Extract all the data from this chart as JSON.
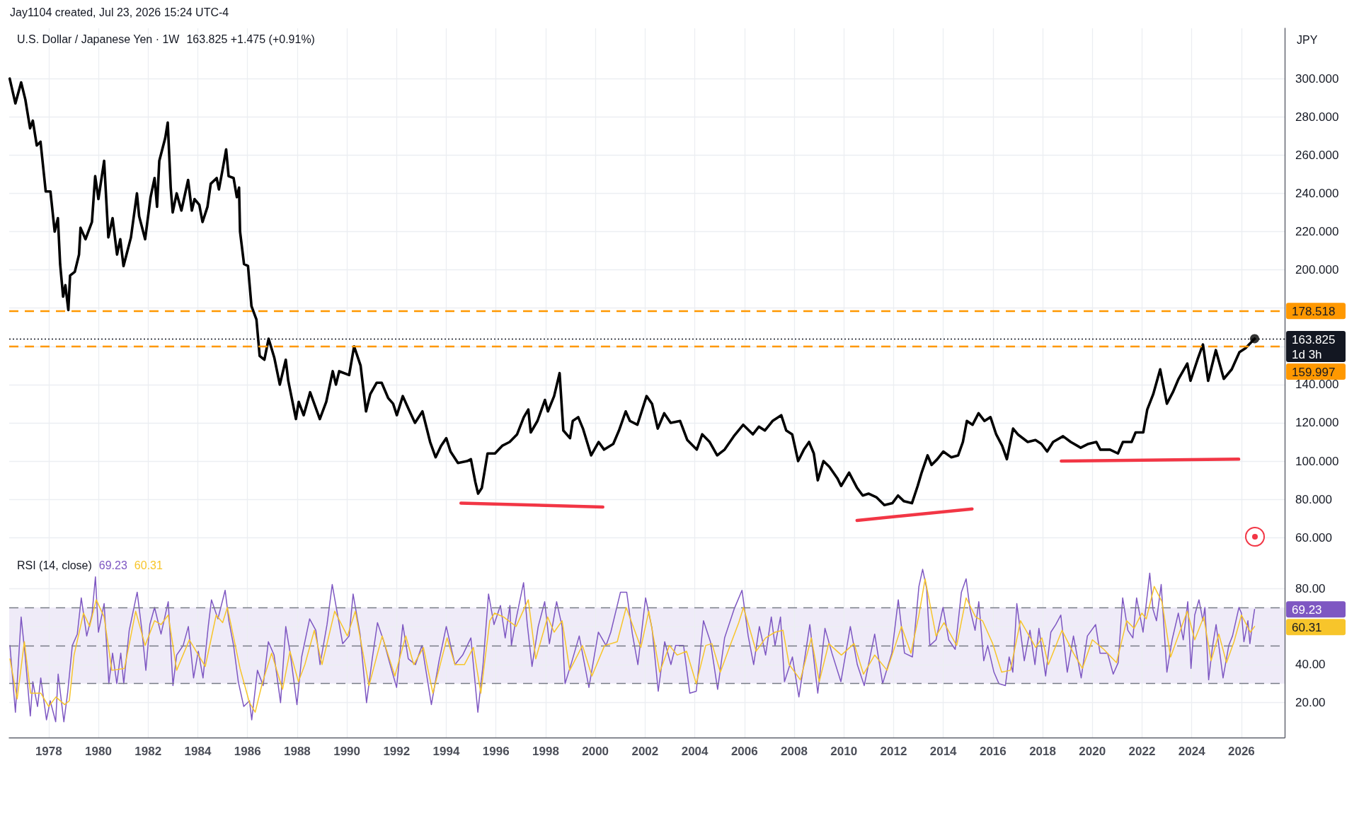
{
  "chart_data": [
    {
      "type": "line",
      "title": "U.S. Dollar / Japanese Yen · 1W",
      "subtitle": "163.825 +1.475 (+0.91%)",
      "ylabel": "JPY",
      "annotations": [
        "Jay1104 created, Jul 23, 2026 15:24 UTC-4"
      ],
      "xlim": [
        1976.41,
        2027.74
      ],
      "xticks": [
        1978,
        1980,
        1982,
        1984,
        1986,
        1988,
        1990,
        1992,
        1994,
        1996,
        1998,
        2000,
        2002,
        2004,
        2006,
        2008,
        2010,
        2012,
        2014,
        2016,
        2018,
        2020,
        2022,
        2024,
        2026
      ],
      "ylim": [
        52.7,
        326.3
      ],
      "yticks": [
        {
          "value": 60,
          "label": "60.000"
        },
        {
          "value": 80,
          "label": "80.000"
        },
        {
          "value": 100,
          "label": "100.000"
        },
        {
          "value": 120,
          "label": "120.000"
        },
        {
          "value": 140,
          "label": "140.000"
        },
        {
          "value": 160,
          "label": null
        },
        {
          "value": 180,
          "label": null
        },
        {
          "value": 200,
          "label": "200.000"
        },
        {
          "value": 220,
          "label": "220.000"
        },
        {
          "value": 240,
          "label": "240.000"
        },
        {
          "value": 260,
          "label": "260.000"
        },
        {
          "value": 280,
          "label": "280.000"
        },
        {
          "value": 300,
          "label": "300.000"
        }
      ],
      "grid": true,
      "marker": "none",
      "tick_labels": "y",
      "ref_lines": [
        {
          "axis": "y",
          "value": 178.518,
          "label": "178.518",
          "color": "#ff9800",
          "line_style": "dashed"
        },
        {
          "axis": "y",
          "value": 163.825,
          "label": "163.825\n1d 3h",
          "color": "#131722",
          "line_style": "dotted"
        },
        {
          "axis": "y",
          "value": 159.997,
          "label": "159.997",
          "color": "#ff9800",
          "line_style": "dashed"
        }
      ],
      "series": [
        {
          "color": "#000000",
          "x": [
            1976.43,
            1976.66,
            1976.89,
            1977.06,
            1977.25,
            1977.36,
            1977.52,
            1977.67,
            1977.88,
            1978.07,
            1978.24,
            1978.37,
            1978.46,
            1978.58,
            1978.67,
            1978.79,
            1978.86,
            1979.05,
            1979.22,
            1979.28,
            1979.48,
            1979.74,
            1979.87,
            1980,
            1980.23,
            1980.4,
            1980.57,
            1980.75,
            1980.88,
            1981.01,
            1981.31,
            1981.55,
            1981.64,
            1981.88,
            1982.1,
            1982.26,
            1982.36,
            1982.45,
            1982.69,
            1982.79,
            1982.91,
            1982.99,
            1983.15,
            1983.34,
            1983.61,
            1983.76,
            1983.87,
            1984.06,
            1984.19,
            1984.39,
            1984.52,
            1984.76,
            1984.85,
            1985.02,
            1985.14,
            1985.24,
            1985.44,
            1985.57,
            1985.66,
            1985.7,
            1985.86,
            1986.02,
            1986.16,
            1986.36,
            1986.49,
            1986.68,
            1986.85,
            1987.08,
            1987.3,
            1987.54,
            1987.64,
            1987.95,
            1988.06,
            1988.26,
            1988.52,
            1988.91,
            1989.17,
            1989.43,
            1989.56,
            1989.69,
            1990.09,
            1990.29,
            1990.55,
            1990.77,
            1990.94,
            1991.2,
            1991.4,
            1991.66,
            1991.86,
            1992.01,
            1992.25,
            1992.49,
            1992.74,
            1993.04,
            1993.35,
            1993.57,
            1993.79,
            1994,
            1994.17,
            1994.47,
            1994.84,
            1994.99,
            1995.17,
            1995.28,
            1995.43,
            1995.66,
            1995.96,
            1996.25,
            1996.55,
            1996.85,
            1997.12,
            1997.3,
            1997.4,
            1997.67,
            1997.97,
            1998.09,
            1998.34,
            1998.56,
            1998.71,
            1998.98,
            1999.09,
            1999.31,
            1999.5,
            1999.83,
            2000.13,
            2000.35,
            2000.72,
            2000.95,
            2001.22,
            2001.39,
            2001.69,
            2002.06,
            2002.28,
            2002.51,
            2002.77,
            2003.03,
            2003.41,
            2003.7,
            2004.08,
            2004.3,
            2004.6,
            2004.9,
            2005.2,
            2005.57,
            2005.95,
            2006.34,
            2006.58,
            2006.82,
            2007.13,
            2007.48,
            2007.68,
            2007.92,
            2008.16,
            2008.39,
            2008.6,
            2008.79,
            2008.95,
            2009.18,
            2009.42,
            2009.74,
            2009.89,
            2010.21,
            2010.53,
            2010.76,
            2011,
            2011.32,
            2011.63,
            2011.95,
            2012.18,
            2012.42,
            2012.74,
            2012.97,
            2013.13,
            2013.37,
            2013.53,
            2013.76,
            2014,
            2014.32,
            2014.6,
            2014.79,
            2014.95,
            2015.18,
            2015.42,
            2015.66,
            2015.9,
            2016.13,
            2016.37,
            2016.56,
            2016.81,
            2017,
            2017.4,
            2017.71,
            2017.95,
            2018.18,
            2018.42,
            2018.82,
            2019.13,
            2019.53,
            2019.84,
            2020.16,
            2020.32,
            2020.71,
            2021.03,
            2021.23,
            2021.58,
            2021.74,
            2022.05,
            2022.21,
            2022.45,
            2022.73,
            2023,
            2023.24,
            2023.47,
            2023.82,
            2023.95,
            2024.23,
            2024.45,
            2024.66,
            2024.97,
            2025.29,
            2025.61,
            2025.92,
            2026.16,
            2026.53
          ],
          "values": [
            300,
            287,
            298,
            289,
            274,
            278,
            265,
            267,
            241,
            241,
            220,
            227,
            203,
            186,
            192,
            179,
            197,
            199,
            208,
            222,
            216,
            225,
            249,
            237,
            257,
            217,
            227,
            208,
            216,
            202,
            217,
            240,
            228,
            216,
            238,
            248,
            233,
            257,
            269,
            277,
            243,
            230,
            240,
            231,
            247,
            231,
            237,
            234,
            225,
            233,
            245,
            248,
            242,
            254,
            263,
            249,
            248,
            238,
            243,
            220,
            203,
            202,
            181,
            174,
            155,
            153,
            164,
            154,
            140,
            153,
            142,
            122,
            131,
            124,
            136,
            122,
            131,
            147,
            140,
            147,
            145,
            160,
            150,
            126,
            135,
            141,
            141,
            133,
            130,
            124,
            134,
            127,
            120,
            126,
            110,
            102,
            108,
            112,
            105,
            99,
            100,
            101,
            89,
            83,
            86,
            104,
            104,
            108,
            110,
            114,
            123,
            127,
            115,
            121,
            132,
            126,
            134,
            146,
            116,
            112,
            121,
            123,
            117,
            103,
            110,
            106,
            109,
            116,
            126,
            121,
            119,
            134,
            130,
            117,
            125,
            120,
            121,
            111,
            106,
            114,
            110,
            103,
            106,
            113,
            119,
            114,
            118,
            116,
            121,
            124,
            116,
            114,
            100,
            106,
            110,
            104,
            90,
            100,
            97,
            91,
            87,
            94,
            86,
            82,
            83,
            81,
            77,
            78,
            82,
            79,
            78,
            87,
            94,
            103,
            98,
            101,
            105,
            102,
            103,
            110,
            121,
            119,
            125,
            121,
            123,
            114,
            108,
            101,
            117,
            114,
            110,
            111,
            109,
            105,
            110,
            113,
            110,
            107,
            109,
            110,
            106,
            106,
            104,
            110,
            110,
            115,
            115,
            127,
            135,
            148,
            130,
            136,
            143,
            151,
            142,
            153,
            161,
            142,
            158,
            143,
            148,
            157,
            159,
            164
          ]
        },
        {
          "color": "#f23645",
          "x": [
            1994.59,
            2000.3
          ],
          "values": [
            78,
            76
          ]
        },
        {
          "color": "#f23645",
          "x": [
            2010.53,
            2015.16
          ],
          "values": [
            69,
            75
          ]
        },
        {
          "color": "#f23645",
          "x": [
            2018.75,
            2025.89
          ],
          "values": [
            100,
            101
          ]
        },
        {
          "type": "scatter",
          "marker": "circle",
          "color": "#000000",
          "x": [
            2026.53
          ],
          "values": [
            164
          ]
        }
      ]
    },
    {
      "type": "line",
      "title": "RSI (14, close)",
      "annotations": [
        "69.23",
        "60.31"
      ],
      "xlim": [
        1976.41,
        2027.74
      ],
      "xticks": [
        1978,
        1980,
        1982,
        1984,
        1986,
        1988,
        1990,
        1992,
        1994,
        1996,
        1998,
        2000,
        2002,
        2004,
        2006,
        2008,
        2010,
        2012,
        2014,
        2016,
        2018,
        2020,
        2022,
        2024,
        2026
      ],
      "ylim": [
        1.7,
        99.3
      ],
      "yticks": [
        {
          "value": 20,
          "label": "20.00"
        },
        {
          "value": 40,
          "label": "40.00"
        },
        {
          "value": 60,
          "label": null
        },
        {
          "value": 80,
          "label": "80.00"
        }
      ],
      "grid": true,
      "marker": "none",
      "ref_lines": [
        {
          "axis": "y",
          "value": 70,
          "color": "#787b86",
          "line_style": "dashed"
        },
        {
          "axis": "y",
          "value": 50,
          "color": "#787b86",
          "line_style": "dashed"
        },
        {
          "axis": "y",
          "value": 30,
          "color": "#787b86",
          "line_style": "dashed"
        }
      ],
      "bands": [
        {
          "axis": "y",
          "from": 30,
          "to": 70,
          "color": "#efebf8"
        }
      ],
      "series": [
        {
          "color": "#7e57c2",
          "x": [
            1976.44,
            1976.66,
            1976.89,
            1977.05,
            1977.26,
            1977.36,
            1977.55,
            1977.68,
            1977.91,
            1978.06,
            1978.28,
            1978.38,
            1978.61,
            1978.76,
            1978.95,
            1979.15,
            1979.31,
            1979.53,
            1979.74,
            1979.88,
            1980,
            1980.23,
            1980.42,
            1980.57,
            1980.74,
            1980.9,
            1981.02,
            1981.24,
            1981.56,
            1981.75,
            1981.91,
            1982.07,
            1982.26,
            1982.52,
            1982.81,
            1983,
            1983.15,
            1983.41,
            1983.62,
            1983.83,
            1984.02,
            1984.21,
            1984.42,
            1984.55,
            1984.81,
            1985.1,
            1985.25,
            1985.44,
            1985.63,
            1985.85,
            1986.08,
            1986.17,
            1986.4,
            1986.63,
            1986.84,
            1987.07,
            1987.33,
            1987.54,
            1987.73,
            1987.99,
            1988.18,
            1988.5,
            1988.75,
            1988.92,
            1989.2,
            1989.41,
            1989.64,
            1989.83,
            1990.09,
            1990.25,
            1990.53,
            1990.79,
            1991.02,
            1991.23,
            1991.49,
            1991.74,
            1992,
            1992.25,
            1992.47,
            1992.76,
            1993.02,
            1993.4,
            1993.71,
            1994,
            1994.35,
            1994.66,
            1994.99,
            1995.27,
            1995.48,
            1995.7,
            1995.92,
            1996.18,
            1996.37,
            1996.56,
            1996.62,
            1996.81,
            1997.11,
            1997.26,
            1997.45,
            1997.7,
            1997.96,
            1998.15,
            1998.44,
            1998.66,
            1998.78,
            1999.04,
            1999.35,
            1999.74,
            2000.12,
            2000.43,
            2000.62,
            2001.01,
            2001.26,
            2001.49,
            2001.71,
            2002.02,
            2002.28,
            2002.53,
            2002.79,
            2003.04,
            2003.23,
            2003.55,
            2003.8,
            2004.06,
            2004.35,
            2004.63,
            2004.92,
            2005.2,
            2005.58,
            2005.9,
            2006.15,
            2006.37,
            2006.6,
            2006.85,
            2007.08,
            2007.23,
            2007.45,
            2007.61,
            2007.93,
            2008.19,
            2008.63,
            2008.95,
            2009.24,
            2009.52,
            2009.88,
            2010.26,
            2010.54,
            2010.82,
            2011.24,
            2011.56,
            2011.93,
            2012.19,
            2012.44,
            2012.76,
            2013.02,
            2013.17,
            2013.33,
            2013.46,
            2013.71,
            2013.99,
            2014.22,
            2014.48,
            2014.73,
            2014.92,
            2015.08,
            2015.28,
            2015.43,
            2015.63,
            2015.79,
            2016.04,
            2016.24,
            2016.5,
            2016.65,
            2016.8,
            2016.96,
            2017.13,
            2017.26,
            2017.49,
            2017.69,
            2017.85,
            2018.12,
            2018.33,
            2018.53,
            2018.73,
            2018.99,
            2019.24,
            2019.55,
            2019.8,
            2020.13,
            2020.31,
            2020.61,
            2020.84,
            2021.04,
            2021.22,
            2021.43,
            2021.63,
            2021.78,
            2022.04,
            2022.31,
            2022.44,
            2022.58,
            2022.77,
            2023,
            2023.21,
            2023.46,
            2023.66,
            2023.84,
            2023.97,
            2024.12,
            2024.29,
            2024.45,
            2024.53,
            2024.68,
            2024.83,
            2024.98,
            2025.26,
            2025.49,
            2025.64,
            2025.9,
            2026,
            2026.1,
            2026.26,
            2026.34,
            2026.46,
            2026.53
          ],
          "values": [
            50,
            15,
            65,
            45,
            13,
            31,
            18,
            33,
            11,
            21,
            10,
            35,
            10,
            25,
            50,
            56,
            75,
            55,
            66,
            86,
            57,
            72,
            30,
            46,
            30,
            46,
            30,
            58,
            78,
            58,
            37,
            61,
            70,
            56,
            73,
            29,
            45,
            50,
            60,
            33,
            47,
            33,
            60,
            74,
            64,
            79,
            63,
            50,
            31,
            18,
            21,
            11,
            37,
            29,
            52,
            45,
            20,
            60,
            45,
            19,
            44,
            64,
            58,
            40,
            61,
            82,
            65,
            51,
            55,
            77,
            56,
            20,
            43,
            62,
            52,
            40,
            28,
            61,
            43,
            40,
            50,
            19,
            42,
            60,
            40,
            45,
            54,
            15,
            40,
            77,
            61,
            71,
            54,
            71,
            50,
            64,
            83,
            61,
            39,
            60,
            73,
            51,
            73,
            60,
            30,
            41,
            55,
            28,
            57,
            50,
            57,
            78,
            78,
            56,
            40,
            75,
            59,
            26,
            52,
            40,
            50,
            50,
            25,
            26,
            63,
            52,
            27,
            54,
            69,
            79,
            55,
            40,
            60,
            45,
            65,
            50,
            65,
            31,
            44,
            23,
            61,
            25,
            59,
            46,
            31,
            60,
            40,
            29,
            56,
            30,
            46,
            74,
            46,
            44,
            81,
            90,
            80,
            50,
            53,
            70,
            53,
            48,
            78,
            85,
            69,
            58,
            73,
            42,
            50,
            36,
            30,
            29,
            44,
            36,
            72,
            55,
            42,
            58,
            40,
            59,
            34,
            57,
            61,
            66,
            36,
            55,
            33,
            55,
            61,
            46,
            46,
            35,
            41,
            75,
            58,
            54,
            75,
            57,
            88,
            69,
            63,
            82,
            36,
            53,
            67,
            53,
            73,
            38,
            66,
            74,
            63,
            70,
            32,
            49,
            61,
            33,
            50,
            55,
            70,
            67,
            52,
            63,
            51,
            63,
            69
          ]
        },
        {
          "color": "#f7c52b",
          "x": [
            1976.44,
            1976.73,
            1977.02,
            1977.27,
            1977.68,
            1978,
            1978.29,
            1978.64,
            1978.83,
            1979.02,
            1979.4,
            1979.65,
            1979.91,
            1980.23,
            1980.54,
            1981.05,
            1981.5,
            1981.88,
            1982.26,
            1982.52,
            1982.81,
            1983.15,
            1983.66,
            1984.3,
            1984.74,
            1985,
            1985.19,
            1985.7,
            1986.08,
            1986.31,
            1986.59,
            1986.97,
            1987.41,
            1987.71,
            1988.05,
            1988.31,
            1988.69,
            1989,
            1989.51,
            1990.02,
            1990.34,
            1990.89,
            1991.42,
            1991.93,
            1992.37,
            1992.69,
            1993.08,
            1993.46,
            1994.03,
            1994.35,
            1994.73,
            1995.09,
            1995.39,
            1995.75,
            1995.94,
            1996.3,
            1996.81,
            1997.3,
            1997.6,
            1998.08,
            1998.34,
            1998.66,
            1998.97,
            1999.48,
            1999.86,
            2000.37,
            2000.88,
            2001.24,
            2001.83,
            2002.15,
            2002.59,
            2002.98,
            2003.29,
            2003.67,
            2004.06,
            2004.44,
            2004.69,
            2005.03,
            2005.45,
            2005.77,
            2005.96,
            2006.47,
            2006.85,
            2007.23,
            2007.55,
            2007.8,
            2008.25,
            2008.69,
            2009.01,
            2009.39,
            2009.9,
            2010.41,
            2010.79,
            2011.24,
            2011.74,
            2012.32,
            2012.7,
            2013.02,
            2013.27,
            2013.71,
            2014.03,
            2014.54,
            2014.92,
            2015.3,
            2015.58,
            2015.99,
            2016.35,
            2016.7,
            2017.11,
            2017.72,
            2017.97,
            2018.23,
            2018.78,
            2019.24,
            2019.6,
            2020,
            2020.46,
            2020.97,
            2021.38,
            2021.68,
            2021.99,
            2022.17,
            2022.49,
            2022.8,
            2023.15,
            2023.82,
            2024.12,
            2024.48,
            2024.78,
            2025.09,
            2025.4,
            2025.7,
            2026,
            2026.36,
            2026.53
          ],
          "values": [
            43,
            22,
            52,
            25,
            25,
            18,
            23,
            19,
            21,
            45,
            67,
            60,
            74,
            65,
            37,
            38,
            68,
            50,
            63,
            61,
            66,
            37,
            53,
            39,
            66,
            62,
            70,
            38,
            20,
            15,
            30,
            46,
            27,
            47,
            31,
            40,
            58,
            40,
            68,
            55,
            68,
            29,
            55,
            34,
            55,
            40,
            49,
            25,
            54,
            40,
            40,
            49,
            25,
            63,
            67,
            65,
            60,
            74,
            43,
            65,
            57,
            63,
            37,
            50,
            34,
            50,
            52,
            70,
            49,
            68,
            36,
            50,
            45,
            47,
            30,
            50,
            51,
            36,
            51,
            62,
            70,
            47,
            54,
            57,
            58,
            40,
            32,
            54,
            31,
            51,
            45,
            51,
            35,
            45,
            37,
            60,
            46,
            66,
            85,
            55,
            62,
            50,
            75,
            65,
            63,
            51,
            36,
            37,
            63,
            49,
            54,
            40,
            58,
            46,
            38,
            53,
            48,
            41,
            63,
            59,
            67,
            64,
            81,
            73,
            44,
            68,
            53,
            65,
            42,
            56,
            41,
            52,
            66,
            57,
            60
          ]
        }
      ]
    }
  ]
}
